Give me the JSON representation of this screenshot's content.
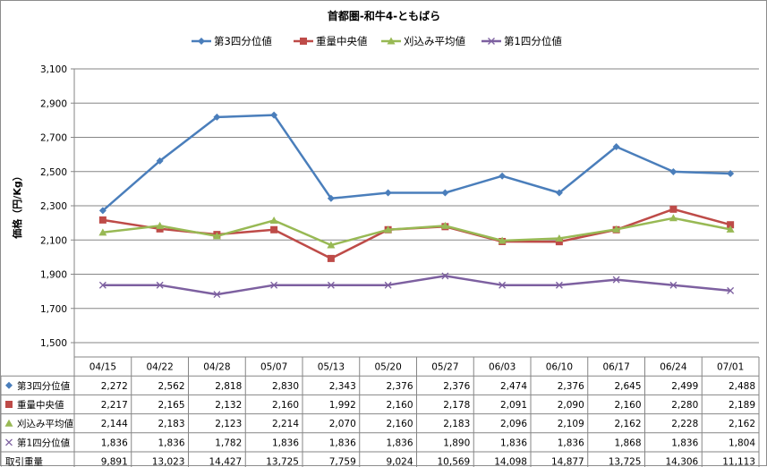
{
  "chart_data": {
    "type": "line",
    "title": "首都圏-和牛4-ともばら",
    "ylabel": "価格（円/Kg）",
    "xlabel": "",
    "ylim": [
      1500,
      3100
    ],
    "yticks": [
      "1,500",
      "1,700",
      "1,900",
      "2,100",
      "2,300",
      "2,500",
      "2,700",
      "2,900",
      "3,100"
    ],
    "ytick_values": [
      1500,
      1700,
      1900,
      2100,
      2300,
      2500,
      2700,
      2900,
      3100
    ],
    "grid": true,
    "legend_position": "top",
    "categories": [
      "04/15",
      "04/22",
      "04/28",
      "05/07",
      "05/13",
      "05/20",
      "05/27",
      "06/03",
      "06/10",
      "06/17",
      "06/24",
      "07/01"
    ],
    "series": [
      {
        "name": "第3四分位値",
        "color": "#4a7ebb",
        "marker": "diamond",
        "values": [
          2272,
          2562,
          2818,
          2830,
          2343,
          2376,
          2376,
          2474,
          2376,
          2645,
          2499,
          2488
        ],
        "labels": [
          "2,272",
          "2,562",
          "2,818",
          "2,830",
          "2,343",
          "2,376",
          "2,376",
          "2,474",
          "2,376",
          "2,645",
          "2,499",
          "2,488"
        ]
      },
      {
        "name": "重量中央値",
        "color": "#be4b48",
        "marker": "square",
        "values": [
          2217,
          2165,
          2132,
          2160,
          1992,
          2160,
          2178,
          2091,
          2090,
          2160,
          2280,
          2189
        ],
        "labels": [
          "2,217",
          "2,165",
          "2,132",
          "2,160",
          "1,992",
          "2,160",
          "2,178",
          "2,091",
          "2,090",
          "2,160",
          "2,280",
          "2,189"
        ]
      },
      {
        "name": "刈込み平均値",
        "color": "#98b954",
        "marker": "triangle",
        "values": [
          2144,
          2183,
          2123,
          2214,
          2070,
          2160,
          2183,
          2096,
          2109,
          2162,
          2228,
          2162
        ],
        "labels": [
          "2,144",
          "2,183",
          "2,123",
          "2,214",
          "2,070",
          "2,160",
          "2,183",
          "2,096",
          "2,109",
          "2,162",
          "2,228",
          "2,162"
        ]
      },
      {
        "name": "第1四分位値",
        "color": "#7d60a0",
        "marker": "x",
        "values": [
          1836,
          1836,
          1782,
          1836,
          1836,
          1836,
          1890,
          1836,
          1836,
          1868,
          1836,
          1804
        ],
        "labels": [
          "1,836",
          "1,836",
          "1,782",
          "1,836",
          "1,836",
          "1,836",
          "1,890",
          "1,836",
          "1,836",
          "1,868",
          "1,836",
          "1,804"
        ]
      }
    ],
    "extra_rows": [
      {
        "name": "取引重量",
        "labels": [
          "9,891",
          "13,023",
          "14,427",
          "13,725",
          "7,759",
          "9,024",
          "10,569",
          "14,098",
          "14,877",
          "13,725",
          "14,306",
          "11,113"
        ]
      }
    ]
  }
}
